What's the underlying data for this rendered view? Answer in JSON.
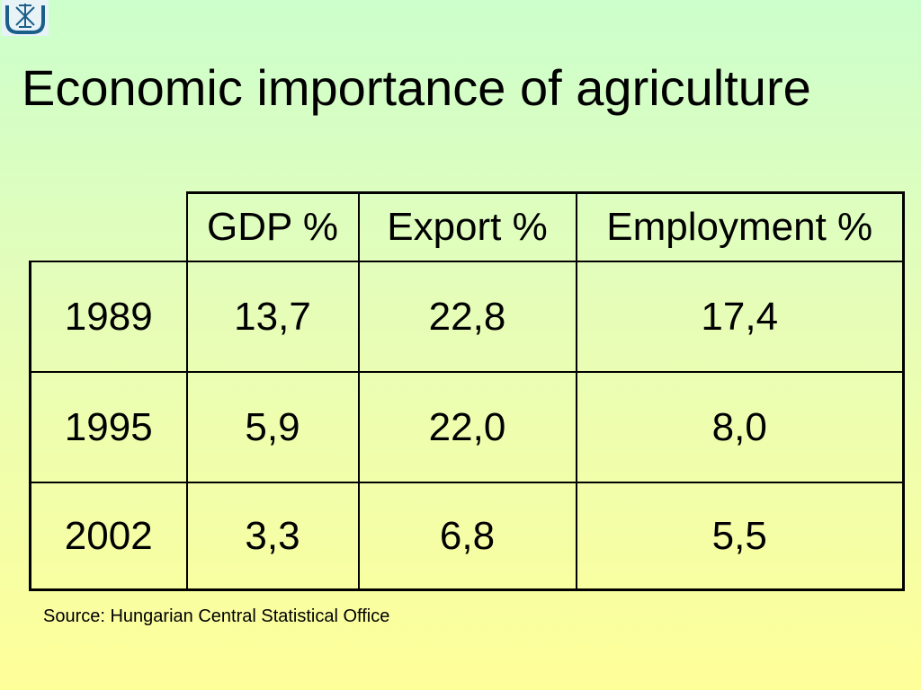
{
  "slide": {
    "title": "Economic importance of agriculture",
    "source": "Source: Hungarian Central Statistical Office"
  },
  "logo": {
    "icon": "university-emblem-icon",
    "colors": {
      "primary": "#1a5f8a",
      "background": "#e8f3f8"
    }
  },
  "table": {
    "headers": [
      "GDP %",
      "Export %",
      "Employment %"
    ],
    "rows": [
      {
        "year": "1989",
        "cells": [
          "13,7",
          "22,8",
          "17,4"
        ]
      },
      {
        "year": "1995",
        "cells": [
          "5,9",
          "22,0",
          "8,0"
        ]
      },
      {
        "year": "2002",
        "cells": [
          "3,3",
          "6,8",
          "5,5"
        ]
      }
    ]
  }
}
